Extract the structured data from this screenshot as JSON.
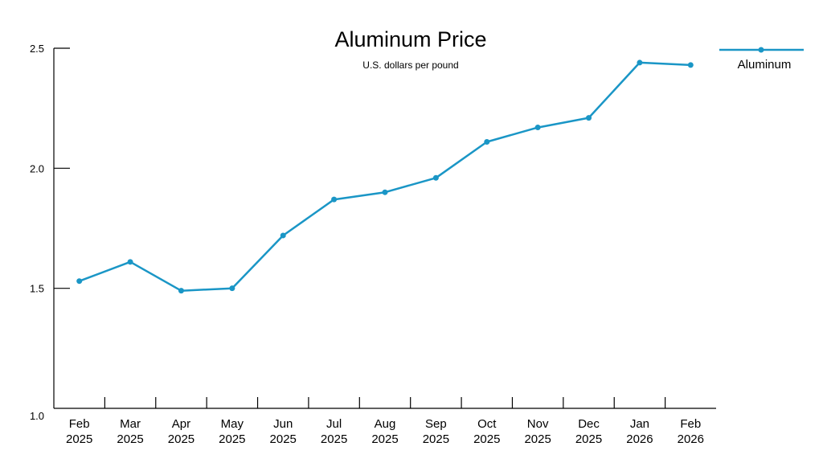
{
  "chart_data": {
    "type": "line",
    "title": "Aluminum Price",
    "subtitle": "U.S. dollars per pound",
    "categories": [
      [
        "Feb",
        "2025"
      ],
      [
        "Mar",
        "2025"
      ],
      [
        "Apr",
        "2025"
      ],
      [
        "May",
        "2025"
      ],
      [
        "Jun",
        "2025"
      ],
      [
        "Jul",
        "2025"
      ],
      [
        "Aug",
        "2025"
      ],
      [
        "Sep",
        "2025"
      ],
      [
        "Oct",
        "2025"
      ],
      [
        "Nov",
        "2025"
      ],
      [
        "Dec",
        "2025"
      ],
      [
        "Jan",
        "2026"
      ],
      [
        "Feb",
        "2026"
      ]
    ],
    "series": [
      {
        "name": "Aluminum",
        "color": "#1a96c6",
        "values": [
          1.53,
          1.61,
          1.49,
          1.5,
          1.72,
          1.87,
          1.9,
          1.96,
          2.11,
          2.17,
          2.21,
          2.44,
          2.43
        ]
      }
    ],
    "ylim": [
      1.0,
      2.5
    ],
    "yticks": [
      "1.0",
      "1.5",
      "2.0",
      "2.5"
    ],
    "grid": false,
    "legend": "top-right"
  }
}
